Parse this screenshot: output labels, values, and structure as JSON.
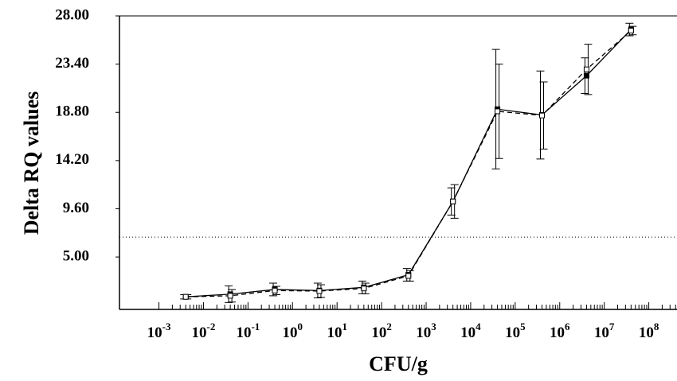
{
  "chart_data": {
    "type": "line",
    "x_label": "CFU/g",
    "y_label": "Delta RQ values",
    "x": [
      0.004,
      0.04,
      0.4,
      4,
      40,
      400,
      4000,
      40000,
      400000,
      4000000,
      40000000
    ],
    "series": [
      {
        "color": "#000000",
        "line_style": "solid",
        "marker": "filled",
        "values": [
          1.2,
          1.45,
          1.9,
          1.8,
          2.1,
          3.3,
          10.3,
          19.1,
          18.55,
          22.3,
          26.7
        ],
        "errors": [
          0.2,
          0.8,
          0.6,
          0.7,
          0.6,
          0.6,
          1.3,
          5.7,
          4.2,
          1.7,
          0.6
        ]
      },
      {
        "color": "#000000",
        "line_style": "dashed",
        "marker": "open",
        "values": [
          1.2,
          1.3,
          1.8,
          1.75,
          2.0,
          3.2,
          10.3,
          18.9,
          18.5,
          22.9,
          26.6
        ],
        "errors": [
          0.2,
          0.6,
          0.4,
          0.6,
          0.5,
          0.5,
          1.6,
          4.5,
          3.2,
          2.4,
          0.4
        ]
      }
    ],
    "threshold": 6.9,
    "xscale": "log",
    "xlim": [
      0.00013,
      430000000
    ],
    "ylim": [
      0,
      28
    ],
    "xticks": [
      {
        "value": 0.001,
        "label": "10-3"
      },
      {
        "value": 0.01,
        "label": "10-2"
      },
      {
        "value": 0.1,
        "label": "10-1"
      },
      {
        "value": 1,
        "label": "100"
      },
      {
        "value": 10,
        "label": "101"
      },
      {
        "value": 100,
        "label": "102"
      },
      {
        "value": 1000,
        "label": "103"
      },
      {
        "value": 10000,
        "label": "104"
      },
      {
        "value": 100000,
        "label": "105"
      },
      {
        "value": 1000000,
        "label": "106"
      },
      {
        "value": 10000000,
        "label": "107"
      },
      {
        "value": 100000000,
        "label": "108"
      }
    ],
    "yticks": [
      {
        "value": 5,
        "label": "5.00"
      },
      {
        "value": 9.6,
        "label": "9.60"
      },
      {
        "value": 14.2,
        "label": "14.20"
      },
      {
        "value": 18.8,
        "label": "18.80"
      },
      {
        "value": 23.4,
        "label": "23.40"
      },
      {
        "value": 28,
        "label": "28.00"
      }
    ]
  }
}
